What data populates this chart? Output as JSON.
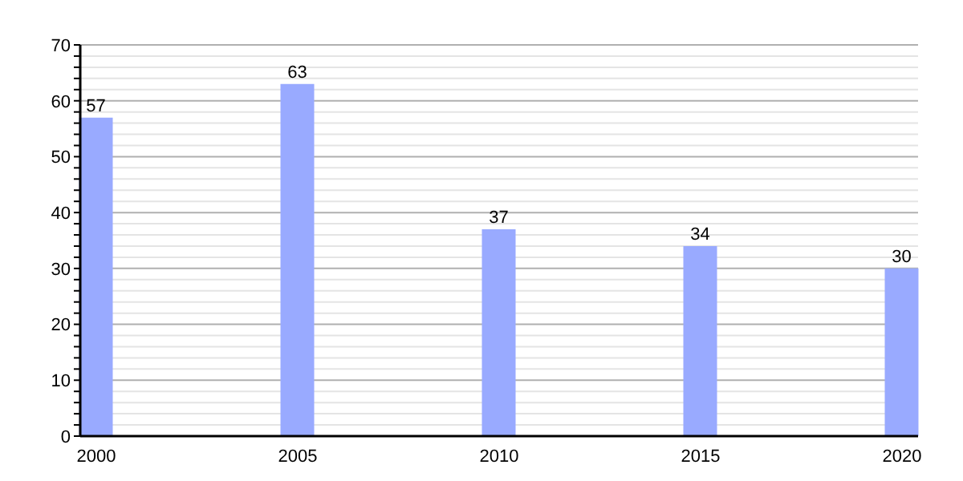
{
  "chart_data": {
    "type": "bar",
    "categories": [
      "2000",
      "2005",
      "2010",
      "2015",
      "2020"
    ],
    "values": [
      57,
      63,
      37,
      34,
      30
    ],
    "color": "#99aaff",
    "data_labels": true,
    "grid": "y",
    "ylim": [
      0,
      70
    ],
    "yticks": [
      0,
      {
        "value": 2,
        "label": null
      },
      {
        "value": 4,
        "label": null
      },
      {
        "value": 6,
        "label": null
      },
      {
        "value": 8,
        "label": null
      },
      10,
      {
        "value": 12,
        "label": null
      },
      {
        "value": 14,
        "label": null
      },
      {
        "value": 16,
        "label": null
      },
      {
        "value": 18,
        "label": null
      },
      20,
      {
        "value": 22,
        "label": null
      },
      {
        "value": 24,
        "label": null
      },
      {
        "value": 26,
        "label": null
      },
      {
        "value": 28,
        "label": null
      },
      30,
      {
        "value": 32,
        "label": null
      },
      {
        "value": 34,
        "label": null
      },
      {
        "value": 36,
        "label": null
      },
      {
        "value": 38,
        "label": null
      },
      40,
      {
        "value": 42,
        "label": null
      },
      {
        "value": 44,
        "label": null
      },
      {
        "value": 46,
        "label": null
      },
      {
        "value": 48,
        "label": null
      },
      50,
      {
        "value": 52,
        "label": null
      },
      {
        "value": 54,
        "label": null
      },
      {
        "value": 56,
        "label": null
      },
      {
        "value": 58,
        "label": null
      },
      60,
      {
        "value": 62,
        "label": null
      },
      {
        "value": 64,
        "label": null
      },
      {
        "value": 66,
        "label": null
      },
      {
        "value": 68,
        "label": null
      },
      70
    ]
  }
}
